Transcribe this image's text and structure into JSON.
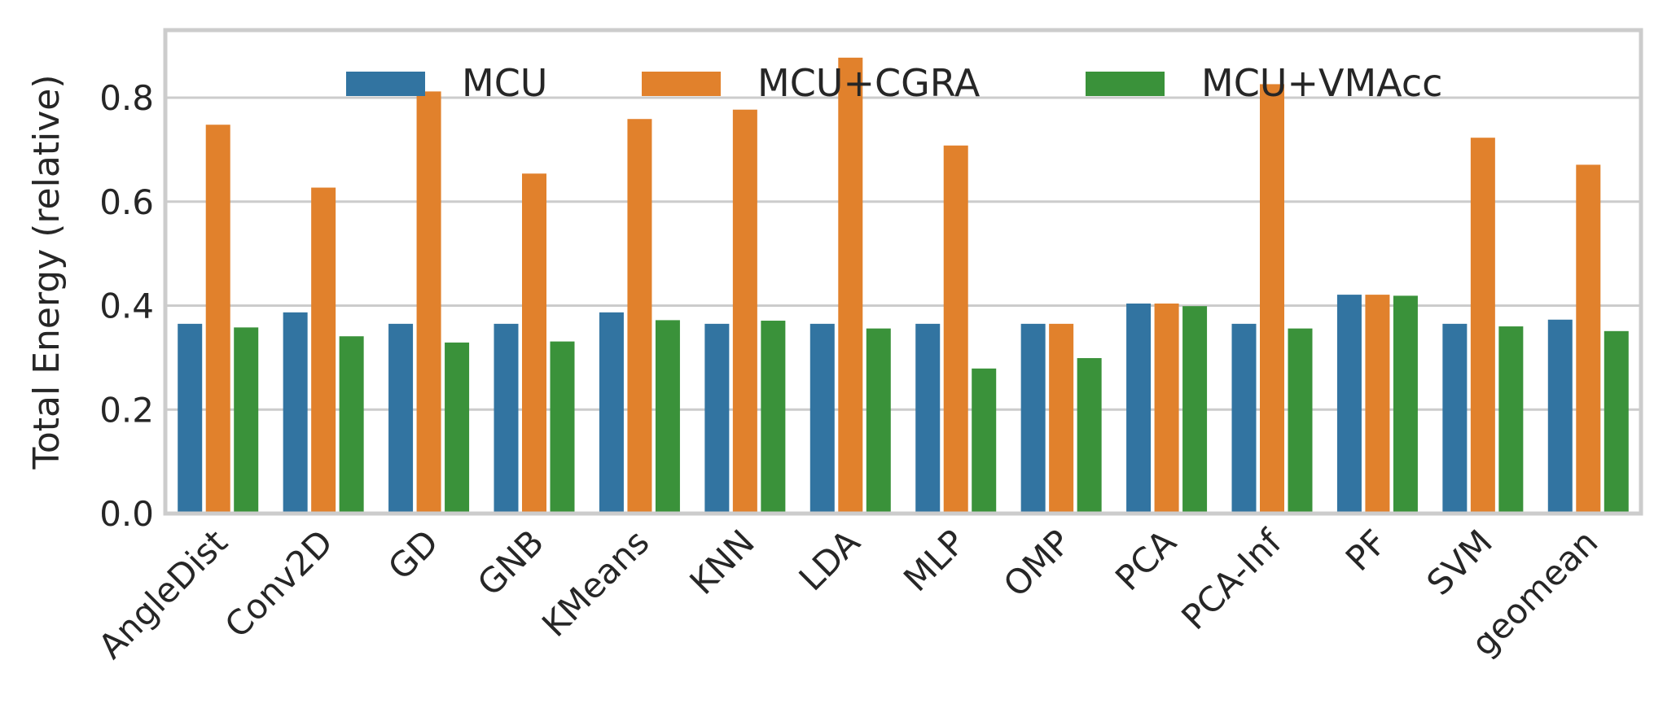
{
  "chart_data": {
    "type": "bar",
    "title": "",
    "xlabel": "",
    "ylabel": "Total Energy (relative)",
    "ylim": [
      0,
      0.93
    ],
    "yticks": [
      0.0,
      0.2,
      0.4,
      0.6,
      0.8
    ],
    "ytick_labels": [
      "0.0",
      "0.2",
      "0.4",
      "0.6",
      "0.8"
    ],
    "grid": "horizontal",
    "legend_position": "top-center",
    "categories": [
      "AngleDist",
      "Conv2D",
      "GD",
      "GNB",
      "KMeans",
      "KNN",
      "LDA",
      "MLP",
      "OMP",
      "PCA",
      "PCA-Inf",
      "PF",
      "SVM",
      "geomean"
    ],
    "series": [
      {
        "name": "MCU",
        "color": "#3274a1",
        "values": [
          0.365,
          0.387,
          0.365,
          0.365,
          0.387,
          0.365,
          0.365,
          0.365,
          0.365,
          0.404,
          0.365,
          0.421,
          0.365,
          0.373
        ]
      },
      {
        "name": "MCU+CGRA",
        "color": "#e1812c",
        "values": [
          0.748,
          0.627,
          0.812,
          0.654,
          0.759,
          0.777,
          0.877,
          0.708,
          0.365,
          0.404,
          0.826,
          0.421,
          0.723,
          0.671
        ]
      },
      {
        "name": "MCU+VMAcc",
        "color": "#3a923a",
        "values": [
          0.358,
          0.341,
          0.329,
          0.331,
          0.372,
          0.371,
          0.356,
          0.279,
          0.299,
          0.399,
          0.356,
          0.419,
          0.36,
          0.351
        ]
      }
    ]
  }
}
